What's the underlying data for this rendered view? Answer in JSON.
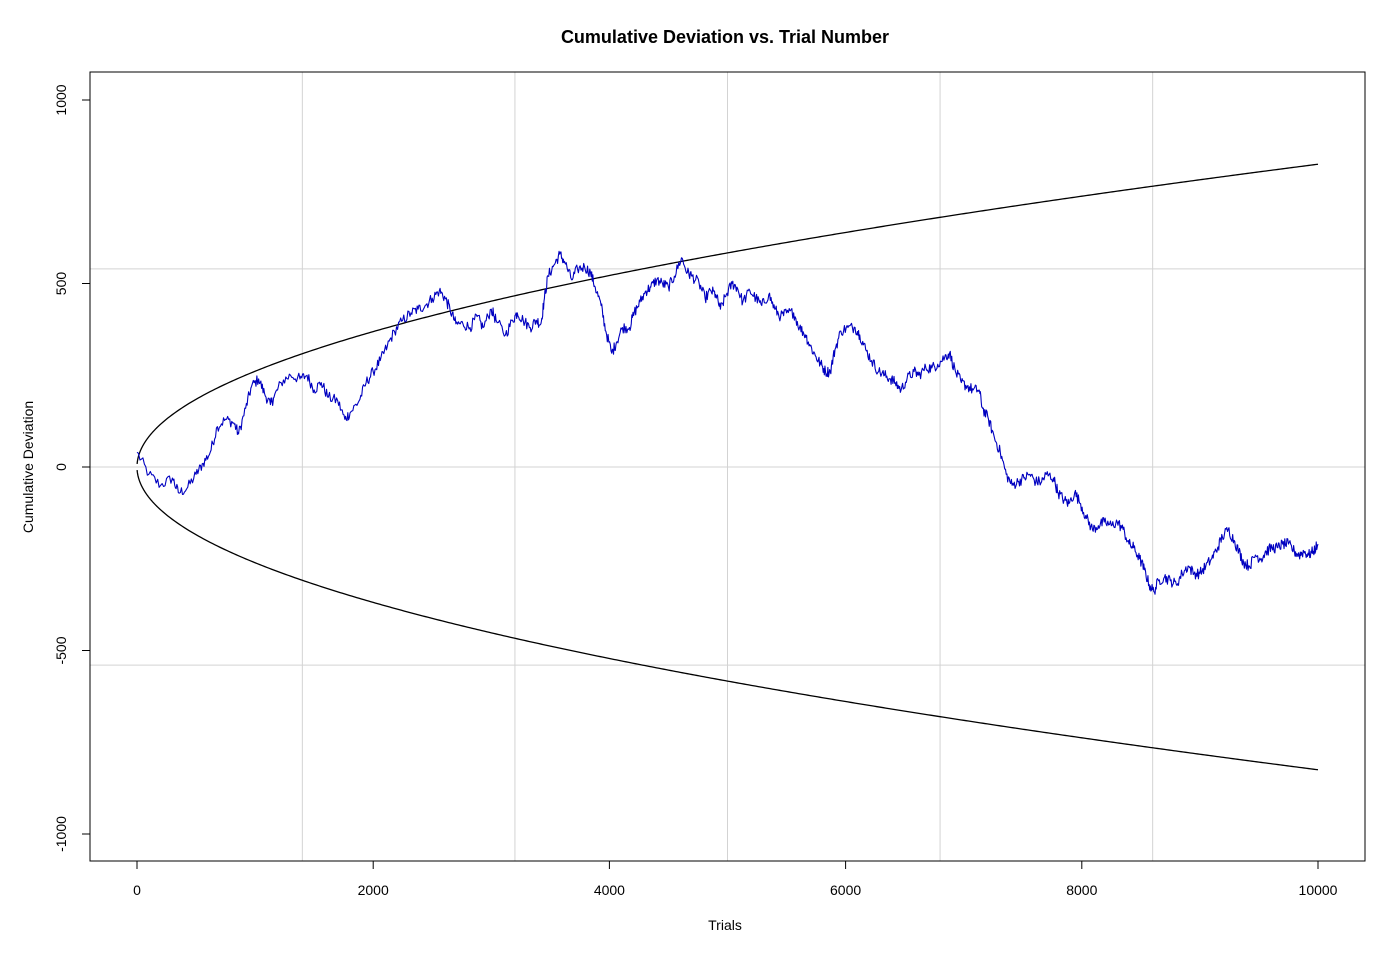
{
  "chart_data": {
    "type": "line",
    "title": "Cumulative Deviation vs. Trial Number",
    "xlabel": "Trials",
    "ylabel": "Cumulative Deviation",
    "xlim": [
      -400,
      10400
    ],
    "ylim": [
      -1080,
      1080
    ],
    "x_ticks": [
      0,
      2000,
      4000,
      6000,
      8000,
      10000
    ],
    "x_tick_labels": [
      "0",
      "2000",
      "4000",
      "6000",
      "8000",
      "10000"
    ],
    "y_ticks": [
      -1000,
      -500,
      0,
      500,
      1000
    ],
    "y_tick_labels": [
      "-1000",
      "-500",
      "0",
      "500",
      "1000"
    ],
    "grid": true,
    "vertical_gridlines_x": [
      1400,
      3200,
      5000,
      6800,
      8600
    ],
    "horizontal_gridlines_y": [
      540,
      0,
      -540
    ],
    "envelope": {
      "description": "±z·sqrt(n) boundary",
      "z": 8.25,
      "x_range": [
        1,
        10000
      ],
      "color": "#000000"
    },
    "series": [
      {
        "color": "#0000c0",
        "points": [
          [
            0,
            40
          ],
          [
            100,
            -20
          ],
          [
            200,
            -50
          ],
          [
            300,
            -30
          ],
          [
            350,
            -70
          ],
          [
            420,
            -60
          ],
          [
            500,
            -20
          ],
          [
            560,
            10
          ],
          [
            620,
            40
          ],
          [
            680,
            110
          ],
          [
            750,
            130
          ],
          [
            820,
            120
          ],
          [
            860,
            90
          ],
          [
            920,
            160
          ],
          [
            970,
            220
          ],
          [
            1030,
            240
          ],
          [
            1080,
            200
          ],
          [
            1130,
            170
          ],
          [
            1160,
            190
          ],
          [
            1220,
            230
          ],
          [
            1300,
            250
          ],
          [
            1380,
            240
          ],
          [
            1440,
            250
          ],
          [
            1500,
            210
          ],
          [
            1560,
            230
          ],
          [
            1620,
            190
          ],
          [
            1700,
            180
          ],
          [
            1760,
            130
          ],
          [
            1810,
            150
          ],
          [
            1880,
            180
          ],
          [
            1940,
            230
          ],
          [
            2000,
            260
          ],
          [
            2060,
            290
          ],
          [
            2120,
            330
          ],
          [
            2180,
            370
          ],
          [
            2250,
            400
          ],
          [
            2320,
            420
          ],
          [
            2380,
            430
          ],
          [
            2440,
            440
          ],
          [
            2500,
            460
          ],
          [
            2560,
            480
          ],
          [
            2610,
            460
          ],
          [
            2650,
            430
          ],
          [
            2700,
            390
          ],
          [
            2760,
            390
          ],
          [
            2820,
            380
          ],
          [
            2880,
            410
          ],
          [
            2930,
            380
          ],
          [
            3000,
            430
          ],
          [
            3040,
            400
          ],
          [
            3120,
            360
          ],
          [
            3180,
            400
          ],
          [
            3220,
            420
          ],
          [
            3270,
            400
          ],
          [
            3330,
            380
          ],
          [
            3380,
            400
          ],
          [
            3420,
            390
          ],
          [
            3450,
            460
          ],
          [
            3480,
            520
          ],
          [
            3530,
            550
          ],
          [
            3580,
            580
          ],
          [
            3620,
            560
          ],
          [
            3680,
            510
          ],
          [
            3730,
            540
          ],
          [
            3790,
            545
          ],
          [
            3840,
            530
          ],
          [
            3880,
            490
          ],
          [
            3930,
            440
          ],
          [
            3970,
            370
          ],
          [
            4020,
            310
          ],
          [
            4060,
            340
          ],
          [
            4110,
            380
          ],
          [
            4170,
            380
          ],
          [
            4210,
            420
          ],
          [
            4260,
            450
          ],
          [
            4310,
            480
          ],
          [
            4350,
            490
          ],
          [
            4400,
            510
          ],
          [
            4450,
            500
          ],
          [
            4500,
            490
          ],
          [
            4550,
            520
          ],
          [
            4610,
            570
          ],
          [
            4660,
            530
          ],
          [
            4700,
            520
          ],
          [
            4760,
            500
          ],
          [
            4810,
            460
          ],
          [
            4860,
            480
          ],
          [
            4900,
            470
          ],
          [
            4940,
            430
          ],
          [
            4990,
            470
          ],
          [
            5040,
            500
          ],
          [
            5080,
            490
          ],
          [
            5130,
            450
          ],
          [
            5190,
            480
          ],
          [
            5240,
            460
          ],
          [
            5290,
            440
          ],
          [
            5350,
            470
          ],
          [
            5400,
            430
          ],
          [
            5450,
            410
          ],
          [
            5500,
            420
          ],
          [
            5560,
            420
          ],
          [
            5610,
            380
          ],
          [
            5660,
            360
          ],
          [
            5700,
            330
          ],
          [
            5750,
            300
          ],
          [
            5790,
            280
          ],
          [
            5830,
            260
          ],
          [
            5870,
            260
          ],
          [
            5910,
            320
          ],
          [
            5960,
            370
          ],
          [
            6020,
            380
          ],
          [
            6080,
            380
          ],
          [
            6120,
            360
          ],
          [
            6170,
            320
          ],
          [
            6220,
            290
          ],
          [
            6280,
            260
          ],
          [
            6330,
            250
          ],
          [
            6380,
            240
          ],
          [
            6420,
            230
          ],
          [
            6470,
            210
          ],
          [
            6520,
            240
          ],
          [
            6580,
            260
          ],
          [
            6620,
            250
          ],
          [
            6680,
            270
          ],
          [
            6730,
            270
          ],
          [
            6780,
            280
          ],
          [
            6840,
            300
          ],
          [
            6880,
            310
          ],
          [
            6930,
            260
          ],
          [
            6980,
            230
          ],
          [
            7030,
            220
          ],
          [
            7080,
            210
          ],
          [
            7130,
            210
          ],
          [
            7160,
            160
          ],
          [
            7210,
            130
          ],
          [
            7260,
            80
          ],
          [
            7310,
            40
          ],
          [
            7360,
            -20
          ],
          [
            7410,
            -50
          ],
          [
            7460,
            -40
          ],
          [
            7510,
            -30
          ],
          [
            7560,
            -20
          ],
          [
            7610,
            -40
          ],
          [
            7660,
            -40
          ],
          [
            7700,
            -20
          ],
          [
            7760,
            -30
          ],
          [
            7800,
            -70
          ],
          [
            7850,
            -90
          ],
          [
            7890,
            -100
          ],
          [
            7940,
            -70
          ],
          [
            7990,
            -100
          ],
          [
            8040,
            -140
          ],
          [
            8090,
            -170
          ],
          [
            8140,
            -160
          ],
          [
            8190,
            -150
          ],
          [
            8250,
            -160
          ],
          [
            8300,
            -150
          ],
          [
            8350,
            -170
          ],
          [
            8400,
            -210
          ],
          [
            8440,
            -220
          ],
          [
            8490,
            -250
          ],
          [
            8530,
            -280
          ],
          [
            8570,
            -320
          ],
          [
            8610,
            -340
          ],
          [
            8650,
            -310
          ],
          [
            8700,
            -300
          ],
          [
            8750,
            -310
          ],
          [
            8800,
            -320
          ],
          [
            8850,
            -290
          ],
          [
            8900,
            -270
          ],
          [
            8950,
            -290
          ],
          [
            9000,
            -290
          ],
          [
            9050,
            -270
          ],
          [
            9100,
            -250
          ],
          [
            9150,
            -220
          ],
          [
            9190,
            -190
          ],
          [
            9240,
            -170
          ],
          [
            9290,
            -200
          ],
          [
            9330,
            -230
          ],
          [
            9370,
            -260
          ],
          [
            9420,
            -270
          ],
          [
            9470,
            -240
          ],
          [
            9520,
            -250
          ],
          [
            9560,
            -230
          ],
          [
            9610,
            -220
          ],
          [
            9660,
            -220
          ],
          [
            9700,
            -210
          ],
          [
            9750,
            -210
          ],
          [
            9800,
            -230
          ],
          [
            9840,
            -240
          ],
          [
            9880,
            -230
          ],
          [
            9920,
            -240
          ],
          [
            9960,
            -230
          ],
          [
            10000,
            -210
          ]
        ]
      }
    ]
  }
}
